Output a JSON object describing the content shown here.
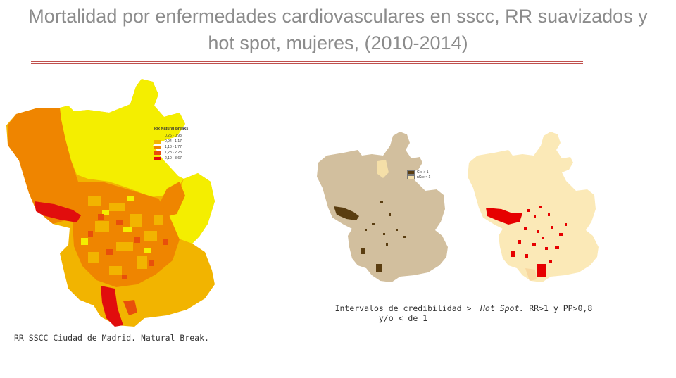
{
  "title": "Mortalidad por enfermedades cardiovasculares en sscc, RR suavizados y hot spot, mujeres, (2010-2014)",
  "colors": {
    "title": "#8c8c8c",
    "rule": "#c0504d",
    "rr_class_1": "#f4ee00",
    "rr_class_2": "#f2b400",
    "rr_class_3": "#ef8500",
    "rr_class_4": "#e84f0b",
    "rr_class_5": "#e10d0d",
    "cred_base": "#d2bf9e",
    "cred_high": "#5a3d10",
    "cred_low": "#f5dfa8",
    "hot_base": "#fbe9b7",
    "hot_spot": "#e60000"
  },
  "map_rr": {
    "legend_title": "RR Natural Breaks",
    "legend_items": [
      "0,26 - 0,93",
      "0,94 - 1,17",
      "1,18 - 1,77",
      "1,28 - 2,23",
      "2,10 - 3,67"
    ],
    "caption": "RR SSCC Ciudad de Madrid. Natural Break."
  },
  "map_credibility": {
    "legend_items": [
      "Cre > 1",
      "nCre < 1"
    ],
    "caption_lines": [
      "Intervalos de credibilidad >",
      "y/o < de 1"
    ]
  },
  "map_hotspot": {
    "caption_emphasis": "Hot Spot.",
    "caption_rest": " RR>1 y PP>0,8"
  }
}
